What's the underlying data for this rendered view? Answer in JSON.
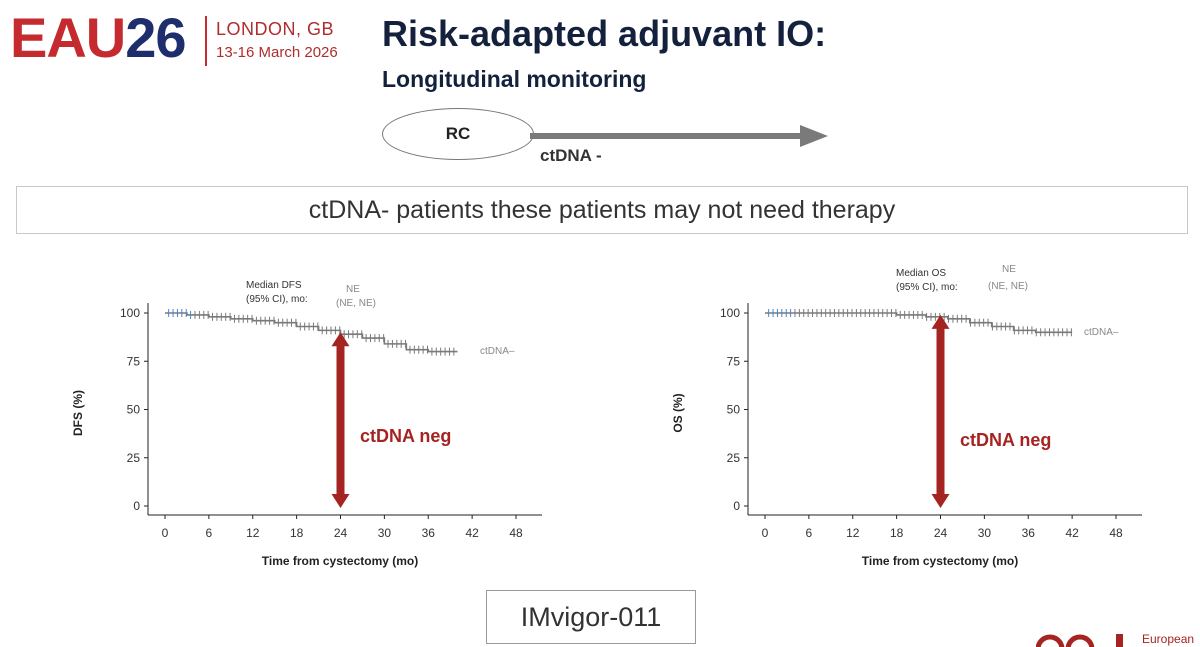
{
  "header": {
    "logo_eau": "EAU",
    "logo_year": "26",
    "logo_city": "LONDON, GB",
    "logo_date": "13-16 March 2026",
    "title": "Risk-adapted adjuvant IO:",
    "subtitle": "Longitudinal monitoring"
  },
  "flow": {
    "node": "RC",
    "arrow_label": "ctDNA -"
  },
  "banner": {
    "text": "ctDNA- patients  these patients may not need therapy"
  },
  "charts": [
    {
      "ylabel": "DFS (%)",
      "xlabel": "Time from cystectomy (mo)",
      "median_label_1": "Median DFS",
      "median_label_2": "(95% CI), mo:",
      "median_value_1": "NE",
      "median_value_2": "(NE, NE)",
      "series_label": "ctDNA–",
      "annotation": "ctDNA neg"
    },
    {
      "ylabel": "OS (%)",
      "xlabel": "Time from cystectomy (mo)",
      "median_label_1": "Median OS",
      "median_label_2": "(95% CI), mo:",
      "median_value_1": "NE",
      "median_value_2": "(NE, NE)",
      "series_label": "ctDNA–",
      "annotation": "ctDNA neg"
    }
  ],
  "chart_data": [
    {
      "type": "line",
      "xlabel": "Time from cystectomy (mo)",
      "ylabel": "DFS (%)",
      "xlim": [
        0,
        48
      ],
      "ylim": [
        0,
        100
      ],
      "xticks": [
        0,
        6,
        12,
        18,
        24,
        30,
        36,
        42,
        48
      ],
      "yticks": [
        0,
        25,
        50,
        75,
        100
      ],
      "series": [
        {
          "name": "ctDNA–",
          "x": [
            0,
            3,
            6,
            9,
            12,
            15,
            18,
            21,
            24,
            27,
            30,
            33,
            36,
            40
          ],
          "y": [
            100,
            99,
            98,
            97,
            96,
            95,
            93,
            91,
            89,
            87,
            84,
            81,
            80,
            80
          ]
        }
      ],
      "annotation": {
        "text": "ctDNA neg",
        "x": 24,
        "y_from": 89,
        "y_to": 0
      }
    },
    {
      "type": "line",
      "xlabel": "Time from cystectomy (mo)",
      "ylabel": "OS (%)",
      "xlim": [
        0,
        48
      ],
      "ylim": [
        0,
        100
      ],
      "xticks": [
        0,
        6,
        12,
        18,
        24,
        30,
        36,
        42,
        48
      ],
      "yticks": [
        0,
        25,
        50,
        75,
        100
      ],
      "series": [
        {
          "name": "ctDNA–",
          "x": [
            0,
            6,
            12,
            18,
            22,
            25,
            28,
            31,
            34,
            37,
            40,
            42
          ],
          "y": [
            100,
            100,
            100,
            99,
            98,
            97,
            95,
            93,
            91,
            90,
            90,
            90
          ]
        }
      ],
      "annotation": {
        "text": "ctDNA neg",
        "x": 24,
        "y_from": 98,
        "y_to": 0
      }
    }
  ],
  "trial": {
    "name": "IMvigor-011"
  },
  "footer": {
    "org_text": "European"
  },
  "colors": {
    "accent_red": "#a52422",
    "eau_red": "#c42a2e",
    "eau_blue": "#1e2d6b",
    "curve_gray": "#7a7a7a",
    "censor_blue": "#4a86c8"
  }
}
